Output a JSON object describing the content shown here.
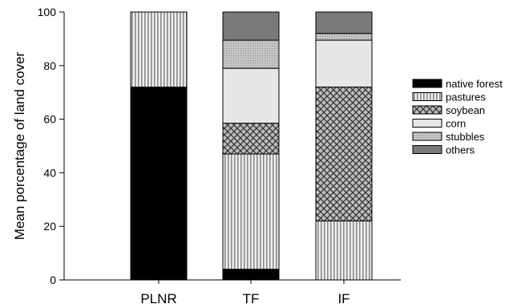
{
  "chart_data": {
    "type": "bar",
    "stacked": true,
    "categories": [
      "PLNR",
      "TF",
      "IF"
    ],
    "ylabel": "Mean porcentage of land cover",
    "xlabel": "",
    "ylim": [
      0,
      100
    ],
    "yticks": [
      0,
      20,
      40,
      60,
      80,
      100
    ],
    "grid": false,
    "legend_position": "right",
    "series": [
      {
        "name": "native forest",
        "values": [
          72,
          4,
          0
        ],
        "color": "#000000",
        "pattern": "solid"
      },
      {
        "name": "pastures",
        "values": [
          28,
          43,
          22
        ],
        "color": "#d9d9d9",
        "pattern": "vertical-lines"
      },
      {
        "name": "soybean",
        "values": [
          0,
          11.5,
          50
        ],
        "color": "#888888",
        "pattern": "crosshatch"
      },
      {
        "name": "corn",
        "values": [
          0,
          20.5,
          17.5
        ],
        "color": "#e6e6e6",
        "pattern": "solid"
      },
      {
        "name": "stubbles",
        "values": [
          0,
          10.5,
          2.5
        ],
        "color": "#a6a6a6",
        "pattern": "dots"
      },
      {
        "name": "others",
        "values": [
          0,
          10.5,
          8
        ],
        "color": "#7a7a7a",
        "pattern": "solid"
      }
    ]
  }
}
